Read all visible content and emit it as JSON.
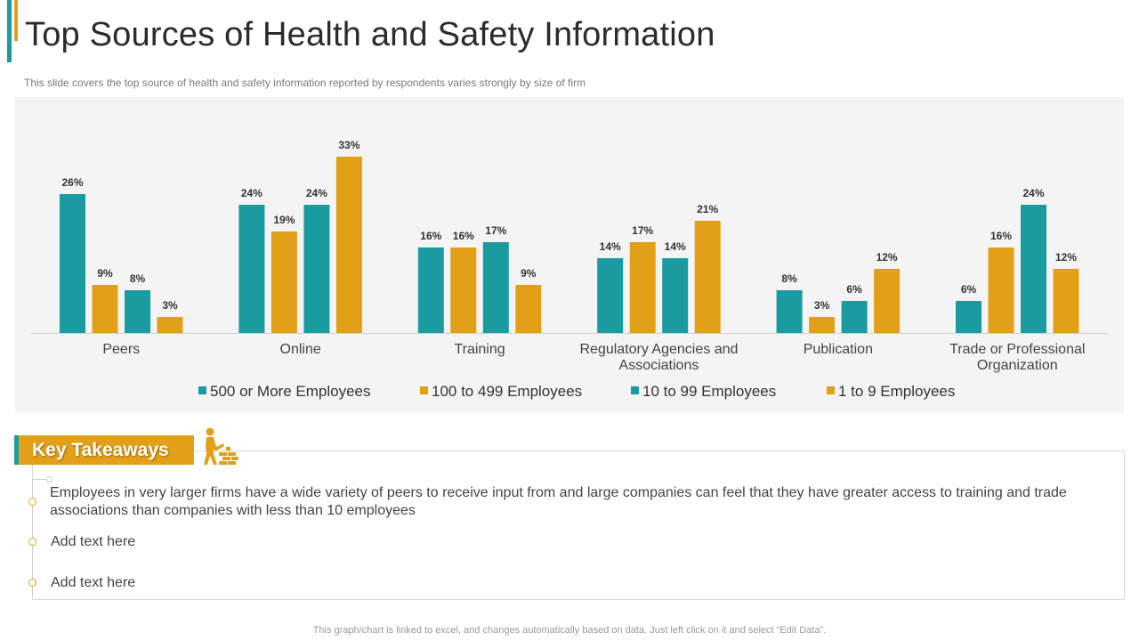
{
  "header": {
    "title": "Top Sources of Health and Safety Information",
    "subtitle": "This slide covers the top source of health and safety information reported by respondents varies strongly by size of firm"
  },
  "colors": {
    "teal": "#1a9ba0",
    "gold": "#e2a019"
  },
  "chart_data": {
    "type": "bar",
    "title": "",
    "xlabel": "",
    "ylabel": "",
    "ylim": [
      0,
      35
    ],
    "grid": false,
    "legend_position": "bottom",
    "categories": [
      [
        "Peers"
      ],
      [
        "Online"
      ],
      [
        "Training"
      ],
      [
        "Regulatory Agencies and",
        "Associations"
      ],
      [
        "Publication"
      ],
      [
        "Trade or Professional",
        "Organization"
      ]
    ],
    "series": [
      {
        "name": "500 or More Employees",
        "color": "#1a9ba0",
        "values": [
          26,
          24,
          16,
          14,
          8,
          6
        ]
      },
      {
        "name": "100 to 499 Employees",
        "color": "#e2a019",
        "values": [
          9,
          19,
          16,
          17,
          3,
          16
        ]
      },
      {
        "name": "10 to 99 Employees",
        "color": "#1a9ba0",
        "values": [
          8,
          24,
          17,
          14,
          6,
          24
        ]
      },
      {
        "name": "1 to 9 Employees",
        "color": "#e2a019",
        "values": [
          3,
          33,
          9,
          21,
          12,
          12
        ]
      }
    ],
    "value_suffix": "%"
  },
  "takeaways": {
    "heading": "Key Takeaways",
    "items": [
      "Employees in very larger firms have a wide variety of peers to receive input from and large companies can feel that they have greater access to training and trade associations than companies with less than 10 employees",
      "Add text here",
      "Add text here"
    ]
  },
  "footer": "This graph/chart is linked to excel, and changes automatically based on data. Just left click on it and select “Edit Data”."
}
